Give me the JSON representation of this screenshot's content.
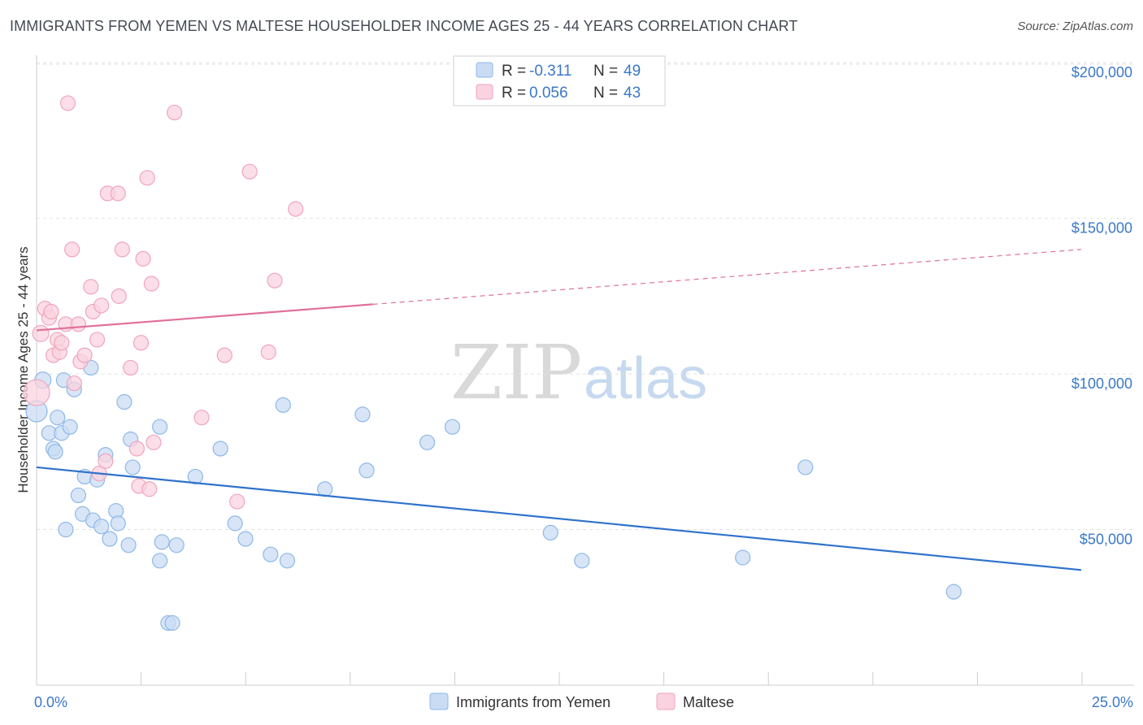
{
  "chart_data": {
    "type": "scatter",
    "title": "IMMIGRANTS FROM YEMEN VS MALTESE HOUSEHOLDER INCOME AGES 25 - 44 YEARS CORRELATION CHART",
    "source": "Source: ZipAtlas.com",
    "ylabel": "Householder Income Ages 25 - 44 years",
    "xlim": [
      0,
      25
    ],
    "ylim": [
      0,
      205000
    ],
    "x_tick_labels": {
      "min": "0.0%",
      "max": "25.0%"
    },
    "y_ticks": [
      {
        "value": 50000,
        "label": "$50,000"
      },
      {
        "value": 100000,
        "label": "$100,000"
      },
      {
        "value": 150000,
        "label": "$150,000"
      },
      {
        "value": 200000,
        "label": "$200,000"
      }
    ],
    "watermark": {
      "zip": "ZIP",
      "atlas": "atlas"
    },
    "legend": [
      {
        "r_label": "R =",
        "r_value": "-0.311",
        "n_label": "N =",
        "n_value": "49"
      },
      {
        "r_label": "R =",
        "r_value": "0.056",
        "n_label": "N =",
        "n_value": "43"
      }
    ],
    "series": [
      {
        "name": "Immigrants from Yemen",
        "color": "#8fb8e8",
        "fill": "#c9dcf4",
        "line_color": "#2f72cc",
        "trend": {
          "x0": 0,
          "y0": 70000,
          "x1": 25,
          "y1": 37000,
          "solid_until": 25
        },
        "points": [
          [
            0.0,
            88000,
            13
          ],
          [
            0.15,
            98000,
            10
          ],
          [
            0.3,
            81000,
            9
          ],
          [
            0.4,
            76000,
            9
          ],
          [
            0.45,
            75000,
            9
          ],
          [
            0.5,
            86000,
            9
          ],
          [
            0.6,
            81000,
            9
          ],
          [
            0.65,
            98000,
            9
          ],
          [
            0.7,
            50000,
            9
          ],
          [
            0.8,
            83000,
            9
          ],
          [
            0.9,
            95000,
            9
          ],
          [
            1.0,
            61000,
            9
          ],
          [
            1.1,
            55000,
            9
          ],
          [
            1.15,
            67000,
            9
          ],
          [
            1.3,
            102000,
            9
          ],
          [
            1.35,
            53000,
            9
          ],
          [
            1.45,
            66000,
            9
          ],
          [
            1.55,
            51000,
            9
          ],
          [
            1.65,
            74000,
            9
          ],
          [
            1.75,
            47000,
            9
          ],
          [
            1.9,
            56000,
            9
          ],
          [
            1.95,
            52000,
            9
          ],
          [
            2.1,
            91000,
            9
          ],
          [
            2.2,
            45000,
            9
          ],
          [
            2.25,
            79000,
            9
          ],
          [
            2.3,
            70000,
            9
          ],
          [
            2.95,
            83000,
            9
          ],
          [
            2.95,
            40000,
            9
          ],
          [
            3.0,
            46000,
            9
          ],
          [
            3.15,
            20000,
            9
          ],
          [
            3.25,
            20000,
            9
          ],
          [
            3.35,
            45000,
            9
          ],
          [
            3.8,
            67000,
            9
          ],
          [
            4.4,
            76000,
            9
          ],
          [
            4.75,
            52000,
            9
          ],
          [
            5.0,
            47000,
            9
          ],
          [
            5.6,
            42000,
            9
          ],
          [
            5.9,
            90000,
            9
          ],
          [
            6.0,
            40000,
            9
          ],
          [
            6.9,
            63000,
            9
          ],
          [
            7.8,
            87000,
            9
          ],
          [
            7.9,
            69000,
            9
          ],
          [
            9.35,
            78000,
            9
          ],
          [
            9.95,
            83000,
            9
          ],
          [
            12.3,
            49000,
            9
          ],
          [
            13.05,
            40000,
            9
          ],
          [
            16.9,
            41000,
            9
          ],
          [
            18.4,
            70000,
            9
          ],
          [
            21.95,
            30000,
            9
          ]
        ]
      },
      {
        "name": "Maltese",
        "color": "#f0a5bd",
        "fill": "#f9d3df",
        "line_color": "#e0709a",
        "trend": {
          "x0": 0,
          "y0": 114000,
          "x1": 25,
          "y1": 140000,
          "solid_until": 8.05
        },
        "points": [
          [
            0.0,
            94000,
            16
          ],
          [
            0.1,
            113000,
            10
          ],
          [
            0.2,
            121000,
            9
          ],
          [
            0.3,
            118000,
            9
          ],
          [
            0.35,
            120000,
            9
          ],
          [
            0.4,
            106000,
            9
          ],
          [
            0.5,
            111000,
            9
          ],
          [
            0.55,
            107000,
            9
          ],
          [
            0.6,
            110000,
            9
          ],
          [
            0.7,
            116000,
            9
          ],
          [
            0.75,
            187000,
            9
          ],
          [
            0.85,
            140000,
            9
          ],
          [
            0.9,
            97000,
            9
          ],
          [
            1.0,
            116000,
            9
          ],
          [
            1.05,
            104000,
            9
          ],
          [
            1.15,
            106000,
            9
          ],
          [
            1.3,
            128000,
            9
          ],
          [
            1.35,
            120000,
            9
          ],
          [
            1.45,
            111000,
            9
          ],
          [
            1.5,
            68000,
            9
          ],
          [
            1.55,
            122000,
            9
          ],
          [
            1.65,
            72000,
            9
          ],
          [
            1.7,
            158000,
            9
          ],
          [
            1.95,
            158000,
            9
          ],
          [
            1.97,
            125000,
            9
          ],
          [
            2.05,
            140000,
            9
          ],
          [
            2.25,
            102000,
            9
          ],
          [
            2.4,
            76000,
            9
          ],
          [
            2.45,
            64000,
            9
          ],
          [
            2.5,
            110000,
            9
          ],
          [
            2.55,
            137000,
            9
          ],
          [
            2.65,
            163000,
            9
          ],
          [
            2.7,
            63000,
            9
          ],
          [
            2.75,
            129000,
            9
          ],
          [
            2.8,
            78000,
            9
          ],
          [
            3.3,
            184000,
            9
          ],
          [
            3.95,
            86000,
            9
          ],
          [
            4.5,
            106000,
            9
          ],
          [
            4.8,
            59000,
            9
          ],
          [
            5.1,
            165000,
            9
          ],
          [
            5.55,
            107000,
            9
          ],
          [
            5.7,
            130000,
            9
          ],
          [
            6.2,
            153000,
            9
          ]
        ]
      }
    ]
  }
}
